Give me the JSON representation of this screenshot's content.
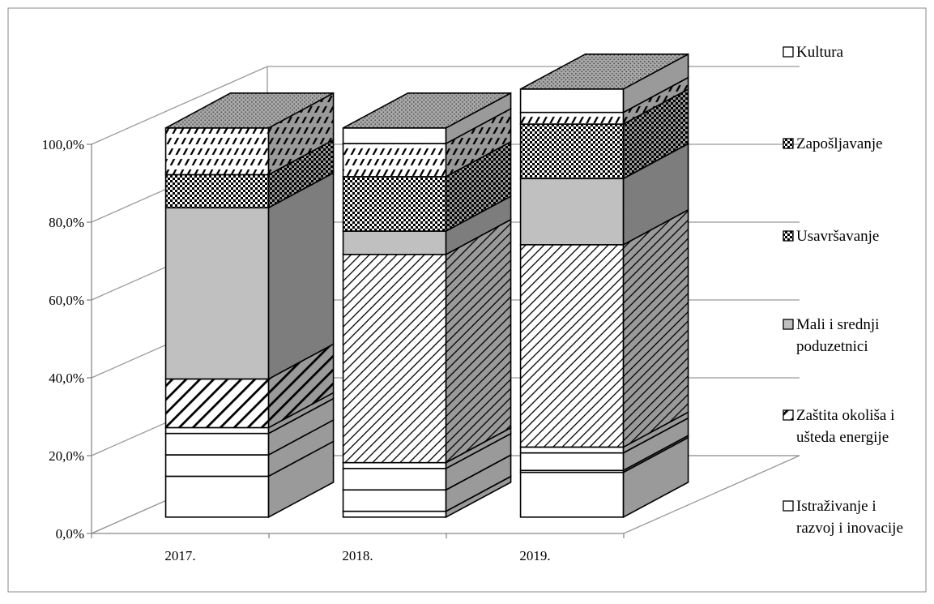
{
  "chart_data": {
    "type": "bar",
    "stacked": true,
    "three_d": true,
    "categories": [
      "2017.",
      "2018.",
      "2019."
    ],
    "y_ticks": [
      "0,0%",
      "20,0%",
      "40,0%",
      "60,0%",
      "80,0%",
      "100,0%"
    ],
    "ylim": [
      0,
      100
    ],
    "grid": true,
    "legend_position": "right",
    "series": [
      {
        "name": "",
        "values": [
          10.5,
          1.5,
          11.5
        ]
      },
      {
        "name": "",
        "values": [
          5.5,
          5.5,
          0.5
        ]
      },
      {
        "name": "",
        "values": [
          5.5,
          5.5,
          4.5
        ]
      },
      {
        "name": "Istraživanje i razvoj i inovacije",
        "values": [
          1.5,
          1.5,
          1.5
        ]
      },
      {
        "name": "Zaštita okoliša i ušteda energije",
        "values": [
          12.5,
          53.5,
          52.0
        ]
      },
      {
        "name": "Mali i srednji poduzetnici",
        "values": [
          44.0,
          6.0,
          17.0
        ]
      },
      {
        "name": "Usavršavanje",
        "values": [
          8.5,
          14.0,
          14.0
        ]
      },
      {
        "name": "Zapošljavanje",
        "values": [
          12.0,
          8.5,
          3.0
        ]
      },
      {
        "name": "Kultura",
        "values": [
          0,
          4.0,
          6.0
        ]
      }
    ],
    "legend": [
      {
        "label": "Kultura",
        "lines": [
          "Kultura"
        ]
      },
      {
        "label": "Zapošljavanje",
        "lines": [
          "Zapošljavanje"
        ]
      },
      {
        "label": "Usavršavanje",
        "lines": [
          "Usavršavanje"
        ]
      },
      {
        "label": "Mali i srednji poduzetnici",
        "lines": [
          "Mali i srednji",
          "poduzetnici"
        ]
      },
      {
        "label": "Zaštita okoliša i ušteda energije",
        "lines": [
          "Zaštita okoliša i",
          "ušteda energije"
        ]
      },
      {
        "label": "Istraživanje i razvoj i inovacije",
        "lines": [
          "Istraživanje i",
          "razvoj i inovacije"
        ]
      }
    ]
  }
}
